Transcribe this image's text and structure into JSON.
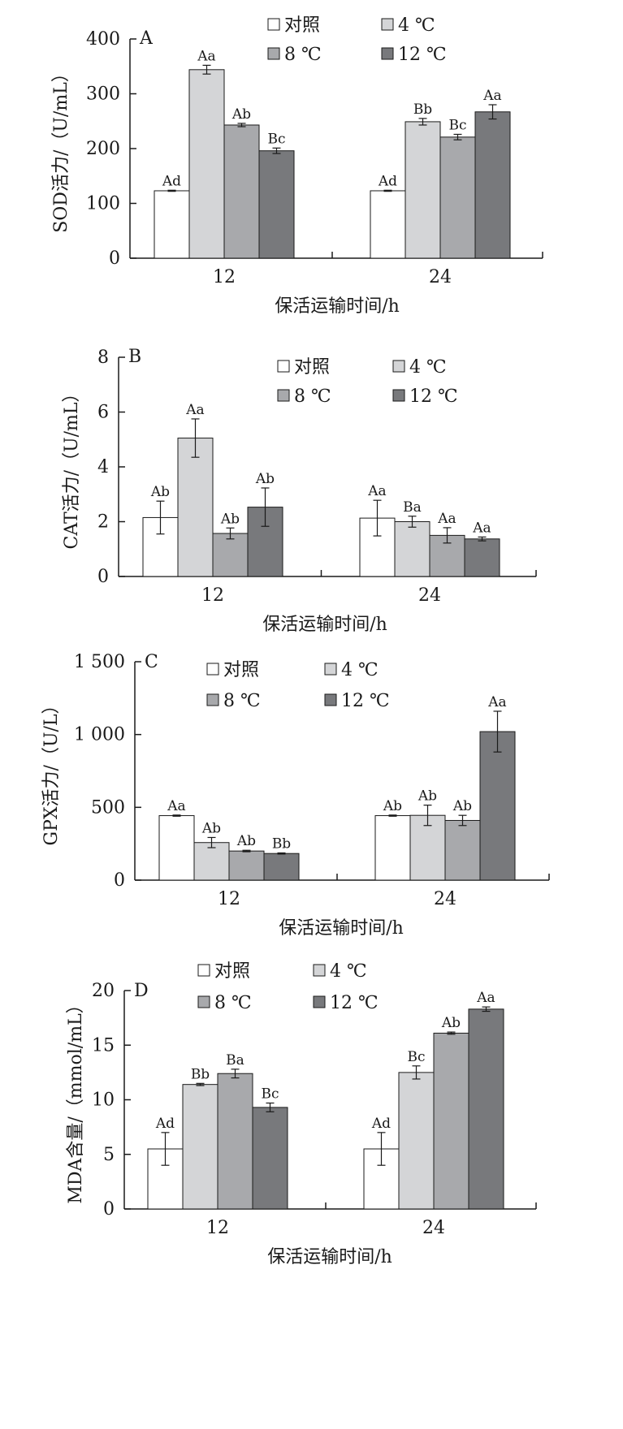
{
  "chart_data": [
    {
      "type": "bar",
      "panel": "A",
      "categories": [
        "12",
        "24"
      ],
      "xlabel": "保活运输时间/h",
      "ylabel": "SOD活力/（U/mL）",
      "ylim": [
        0,
        400
      ],
      "yticks": [
        "0",
        "100",
        "200",
        "300",
        "400"
      ],
      "legend": [
        "对照",
        "4 ℃",
        "8 ℃",
        "12 ℃"
      ],
      "series": [
        {
          "name": "对照",
          "color": "#ffffff",
          "values": [
            123,
            123
          ],
          "errors": [
            1,
            1
          ],
          "labels": [
            "Ad",
            "Ad"
          ]
        },
        {
          "name": "4 ℃",
          "color": "#d4d5d7",
          "values": [
            344,
            249
          ],
          "errors": [
            8,
            6
          ],
          "labels": [
            "Aa",
            "Bb"
          ]
        },
        {
          "name": "8 ℃",
          "color": "#a8a9ac",
          "values": [
            243,
            221
          ],
          "errors": [
            3,
            5
          ],
          "labels": [
            "Ab",
            "Bc"
          ]
        },
        {
          "name": "12 ℃",
          "color": "#78797c",
          "values": [
            196,
            267
          ],
          "errors": [
            5,
            13
          ],
          "labels": [
            "Bc",
            "Aa"
          ]
        }
      ]
    },
    {
      "type": "bar",
      "panel": "B",
      "categories": [
        "12",
        "24"
      ],
      "xlabel": "保活运输时间/h",
      "ylabel": "CAT活力/（U/mL）",
      "ylim": [
        0,
        8
      ],
      "yticks": [
        "0",
        "2",
        "4",
        "6",
        "8"
      ],
      "legend": [
        "对照",
        "4 ℃",
        "8 ℃",
        "12 ℃"
      ],
      "series": [
        {
          "name": "对照",
          "color": "#ffffff",
          "values": [
            2.15,
            2.13
          ],
          "errors": [
            0.6,
            0.65
          ],
          "labels": [
            "Ab",
            "Aa"
          ]
        },
        {
          "name": "4 ℃",
          "color": "#d4d5d7",
          "values": [
            5.05,
            2.0
          ],
          "errors": [
            0.7,
            0.2
          ],
          "labels": [
            "Aa",
            "Ba"
          ]
        },
        {
          "name": "8 ℃",
          "color": "#a8a9ac",
          "values": [
            1.57,
            1.5
          ],
          "errors": [
            0.2,
            0.28
          ],
          "labels": [
            "Ab",
            "Aa"
          ]
        },
        {
          "name": "12 ℃",
          "color": "#78797c",
          "values": [
            2.53,
            1.37
          ],
          "errors": [
            0.7,
            0.07
          ],
          "labels": [
            "Ab",
            "Aa"
          ]
        }
      ]
    },
    {
      "type": "bar",
      "panel": "C",
      "categories": [
        "12",
        "24"
      ],
      "xlabel": "保活运输时间/h",
      "ylabel": "GPX活力/（U/L）",
      "ylim": [
        0,
        1500
      ],
      "yticks": [
        "0",
        "500",
        "1 000",
        "1 500"
      ],
      "legend": [
        "对照",
        "4 ℃",
        "8 ℃",
        "12 ℃"
      ],
      "series": [
        {
          "name": "对照",
          "color": "#ffffff",
          "values": [
            443,
            443
          ],
          "errors": [
            4,
            4
          ],
          "labels": [
            "Aa",
            "Ab"
          ]
        },
        {
          "name": "4 ℃",
          "color": "#d4d5d7",
          "values": [
            258,
            445
          ],
          "errors": [
            35,
            70
          ],
          "labels": [
            "Ab",
            "Ab"
          ]
        },
        {
          "name": "8 ℃",
          "color": "#a8a9ac",
          "values": [
            200,
            410
          ],
          "errors": [
            5,
            35
          ],
          "labels": [
            "Ab",
            "Ab"
          ]
        },
        {
          "name": "12 ℃",
          "color": "#78797c",
          "values": [
            183,
            1020
          ],
          "errors": [
            4,
            140
          ],
          "labels": [
            "Bb",
            "Aa"
          ]
        }
      ]
    },
    {
      "type": "bar",
      "panel": "D",
      "categories": [
        "12",
        "24"
      ],
      "xlabel": "保活运输时间/h",
      "ylabel": "MDA含量/（mmol/mL）",
      "ylim": [
        0,
        20
      ],
      "yticks": [
        "0",
        "5",
        "10",
        "15",
        "20"
      ],
      "legend": [
        "对照",
        "4 ℃",
        "8 ℃",
        "12 ℃"
      ],
      "series": [
        {
          "name": "对照",
          "color": "#ffffff",
          "values": [
            5.5,
            5.5
          ],
          "errors": [
            1.5,
            1.5
          ],
          "labels": [
            "Ad",
            "Ad"
          ]
        },
        {
          "name": "4 ℃",
          "color": "#d4d5d7",
          "values": [
            11.4,
            12.5
          ],
          "errors": [
            0.1,
            0.6
          ],
          "labels": [
            "Bb",
            "Bc"
          ]
        },
        {
          "name": "8 ℃",
          "color": "#a8a9ac",
          "values": [
            12.4,
            16.1
          ],
          "errors": [
            0.4,
            0.1
          ],
          "labels": [
            "Ba",
            "Ab"
          ]
        },
        {
          "name": "12 ℃",
          "color": "#78797c",
          "values": [
            9.3,
            18.3
          ],
          "errors": [
            0.4,
            0.2
          ],
          "labels": [
            "Bc",
            "Aa"
          ]
        }
      ]
    }
  ]
}
